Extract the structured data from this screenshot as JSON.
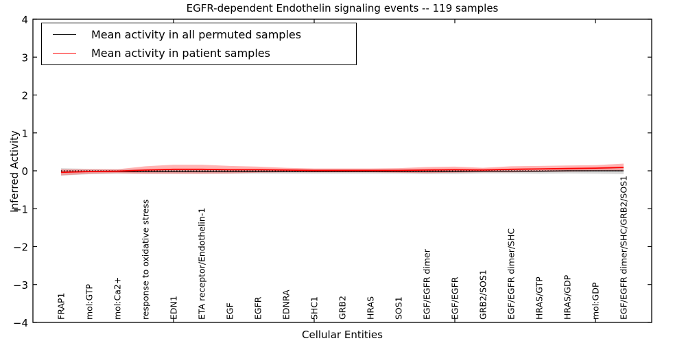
{
  "figure": {
    "title": "EGFR-dependent Endothelin signaling events -- 119 samples",
    "xlabel": "Cellular Entities",
    "ylabel": "Inferred Activity",
    "legend": [
      {
        "label": "Mean activity in all permuted samples",
        "color": "#000000"
      },
      {
        "label": "Mean activity in patient samples",
        "color": "#ff0000"
      }
    ]
  },
  "chart_data": {
    "type": "line",
    "title": "EGFR-dependent Endothelin signaling events -- 119 samples",
    "xlabel": "Cellular Entities",
    "ylabel": "Inferred Activity",
    "ylim": [
      -4,
      4
    ],
    "xlim": [
      0,
      22
    ],
    "yticks": [
      4,
      3,
      2,
      1,
      0,
      -1,
      -2,
      -3,
      -4
    ],
    "xticks_numeric": [
      5,
      10,
      15,
      20
    ],
    "grid": false,
    "legend_position": "upper left",
    "zero_line": {
      "y": 0,
      "style": "dotted",
      "color": "#000000"
    },
    "categories": [
      "FRAP1",
      "mol:GTP",
      "mol:Ca2+",
      "response to oxidative stress",
      "EDN1",
      "ETA receptor/Endothelin-1",
      "EGF",
      "EGFR",
      "EDNRA",
      "SHC1",
      "GRB2",
      "HRAS",
      "SOS1",
      "EGF/EGFR dimer",
      "EGF/EGFR",
      "GRB2/SOS1",
      "EGF/EGFR dimer/SHC",
      "HRAS/GTP",
      "HRAS/GDP",
      "mol:GDP",
      "EGF/EGFR dimer/SHC/GRB2/SOS1"
    ],
    "series": [
      {
        "name": "Mean activity in all permuted samples",
        "color": "#000000",
        "line_width": 1.2,
        "values": [
          -0.03,
          -0.02,
          -0.02,
          -0.02,
          -0.02,
          -0.02,
          -0.02,
          -0.02,
          -0.02,
          -0.02,
          -0.02,
          -0.02,
          -0.02,
          -0.02,
          -0.02,
          -0.01,
          -0.01,
          -0.01,
          0.0,
          0.0,
          0.0
        ],
        "band_halfwidth": [
          0.1,
          0.07,
          0.06,
          0.06,
          0.06,
          0.06,
          0.06,
          0.06,
          0.06,
          0.06,
          0.06,
          0.06,
          0.06,
          0.07,
          0.07,
          0.06,
          0.06,
          0.07,
          0.07,
          0.08,
          0.09
        ],
        "band_color": "#888888",
        "band_opacity": 0.3
      },
      {
        "name": "Mean activity in patient samples",
        "color": "#ff0000",
        "line_width": 1.8,
        "values": [
          -0.04,
          -0.02,
          -0.01,
          0.02,
          0.04,
          0.04,
          0.03,
          0.03,
          0.02,
          0.01,
          0.01,
          0.01,
          0.01,
          0.02,
          0.03,
          0.02,
          0.04,
          0.05,
          0.06,
          0.07,
          0.09
        ],
        "band_halfwidth": [
          0.08,
          0.06,
          0.05,
          0.1,
          0.12,
          0.12,
          0.1,
          0.08,
          0.06,
          0.05,
          0.05,
          0.05,
          0.06,
          0.08,
          0.08,
          0.06,
          0.08,
          0.08,
          0.08,
          0.08,
          0.1
        ],
        "band_color": "#ff4444",
        "band_opacity": 0.4
      }
    ]
  }
}
